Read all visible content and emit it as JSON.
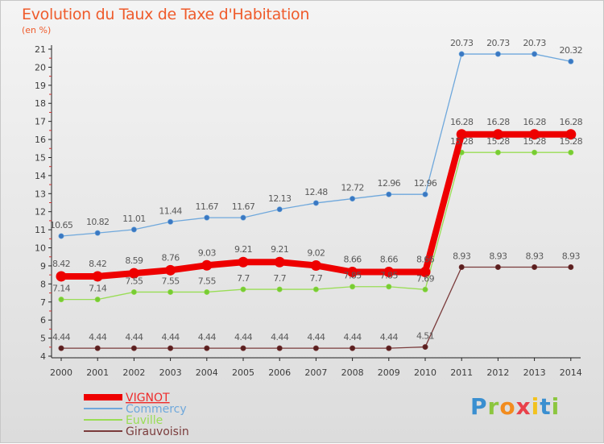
{
  "chart_data": {
    "type": "line",
    "title": "Evolution du Taux de Taxe d'Habitation",
    "unit_label": "(en %)",
    "x": [
      "2000",
      "2001",
      "2002",
      "2003",
      "2004",
      "2005",
      "2006",
      "2007",
      "2008",
      "2009",
      "2010",
      "2011",
      "2012",
      "2013",
      "2014"
    ],
    "ylim": [
      4,
      21
    ],
    "yticks": [
      4,
      5,
      6,
      7,
      8,
      9,
      10,
      11,
      12,
      13,
      14,
      15,
      16,
      17,
      18,
      19,
      20,
      21
    ],
    "grid": false,
    "legend_position": "bottom-left",
    "series": [
      {
        "name": "VIGNOT",
        "color": "#ee0000",
        "emphasis": true,
        "values": [
          8.42,
          8.42,
          8.59,
          8.76,
          9.03,
          9.21,
          9.21,
          9.02,
          8.66,
          8.66,
          8.66,
          16.28,
          16.28,
          16.28,
          16.28
        ],
        "labels": [
          "8.42",
          "8.42",
          "8.59",
          "8.76",
          "9.03",
          "9.21",
          "9.21",
          "9.02",
          "8.66",
          "8.66",
          "8.66",
          "16.28",
          "16.28",
          "16.28",
          "16.28"
        ]
      },
      {
        "name": "Commercy",
        "color": "#6fa8dc",
        "marker": "#3a78c2",
        "values": [
          10.65,
          10.82,
          11.01,
          11.44,
          11.67,
          11.67,
          12.13,
          12.48,
          12.72,
          12.96,
          12.96,
          20.73,
          20.73,
          20.73,
          20.32
        ],
        "labels": [
          "10.65",
          "10.82",
          "11.01",
          "11.44",
          "11.67",
          "11.67",
          "12.13",
          "12.48",
          "12.72",
          "12.96",
          "12.96",
          "20.73",
          "20.73",
          "20.73",
          "20.32"
        ]
      },
      {
        "name": "Euville",
        "color": "#99dd55",
        "marker": "#77cc33",
        "values": [
          7.14,
          7.14,
          7.55,
          7.55,
          7.55,
          7.7,
          7.7,
          7.7,
          7.85,
          7.85,
          7.69,
          15.28,
          15.28,
          15.28,
          15.28
        ],
        "labels": [
          "7.14",
          "7.14",
          "7.55",
          "7.55",
          "7.55",
          "7.7",
          "7.7",
          "7.7",
          "7.85",
          "7.85",
          "7.69",
          "15.28",
          "15.28",
          "15.28",
          "15.28"
        ]
      },
      {
        "name": "Girauvoisin",
        "color": "#7a3b3b",
        "marker": "#5a1f1f",
        "values": [
          4.44,
          4.44,
          4.44,
          4.44,
          4.44,
          4.44,
          4.44,
          4.44,
          4.44,
          4.44,
          4.51,
          8.93,
          8.93,
          8.93,
          8.93
        ],
        "labels": [
          "4.44",
          "4.44",
          "4.44",
          "4.44",
          "4.44",
          "4.44",
          "4.44",
          "4.44",
          "4.44",
          "4.44",
          "4.51",
          "8.93",
          "8.93",
          "8.93",
          "8.93"
        ]
      }
    ]
  },
  "logo": {
    "text": "Proxiti",
    "colors": [
      "#3a8fd0",
      "#8cc63f",
      "#f28c1e",
      "#e9414a",
      "#f2c21e",
      "#3a8fd0",
      "#8cc63f"
    ]
  }
}
